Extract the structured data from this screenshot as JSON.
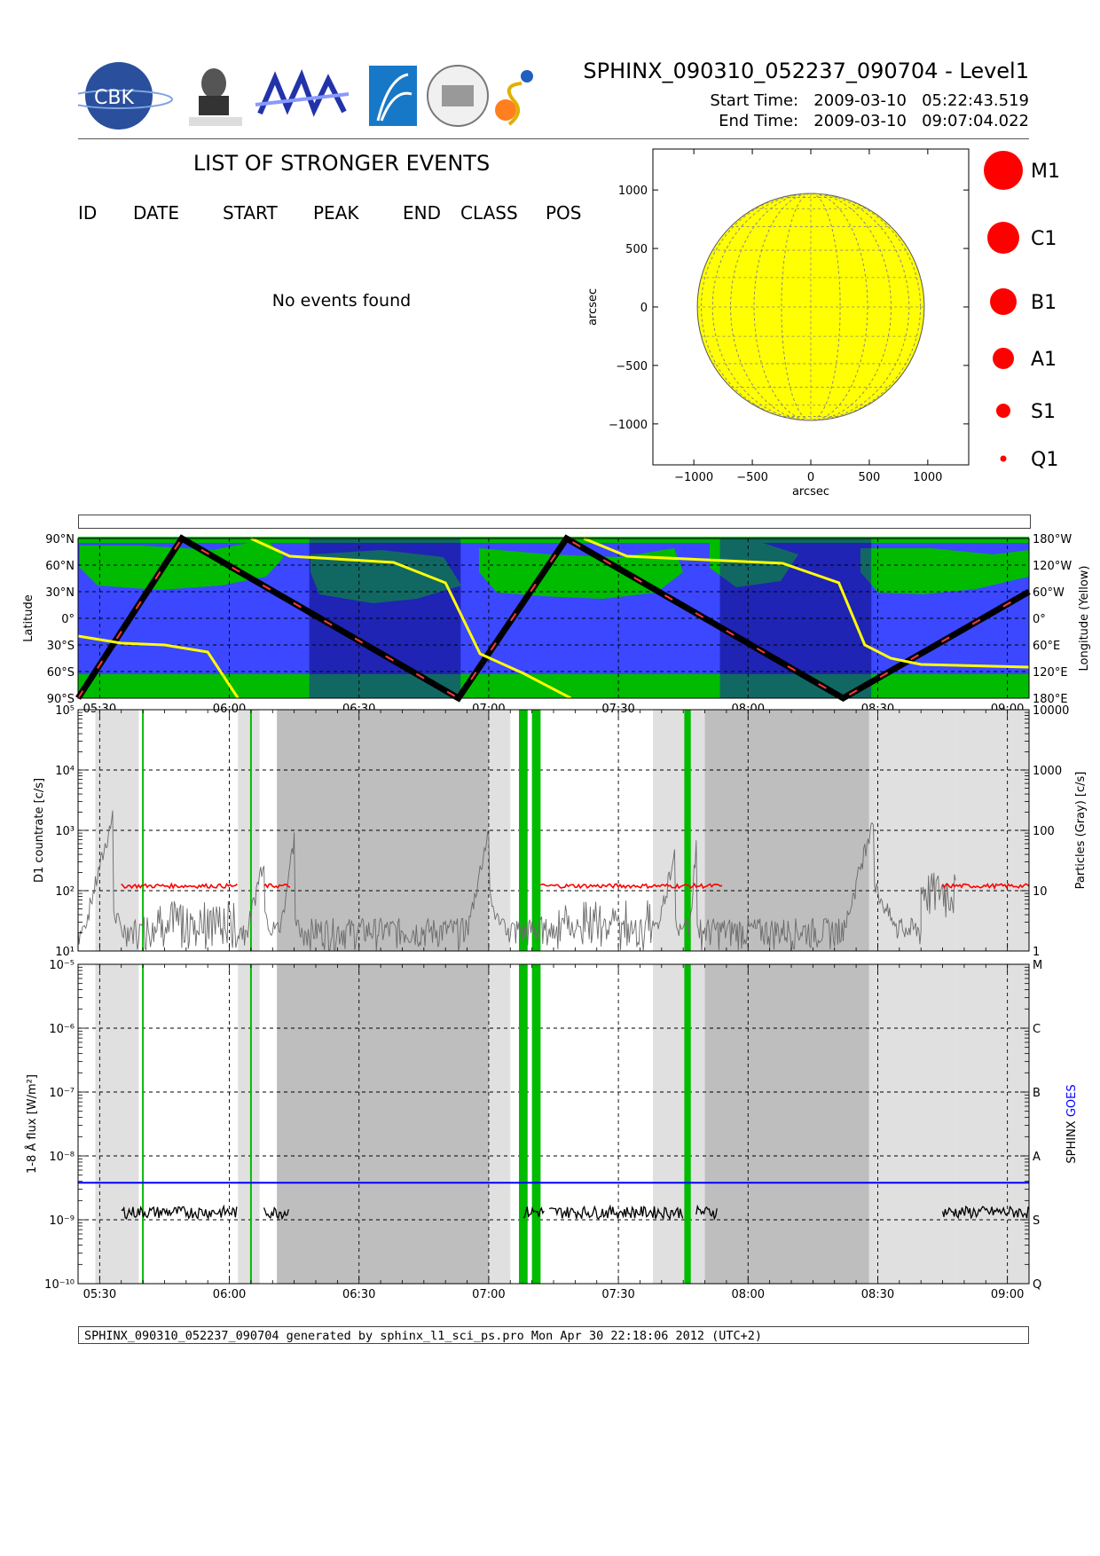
{
  "header": {
    "title": "SPHINX_090310_052237_090704 - Level1",
    "start_label": "Start Time:",
    "start_date": "2009-03-10",
    "start_time": "05:22:43.519",
    "end_label": "End Time:",
    "end_date": "2009-03-10",
    "end_time": "09:07:04.022",
    "logos": [
      "cbk-pan-logo",
      "lebedev-institute-logo",
      "mpan-logo",
      "space-logo",
      "observatory-seal-logo",
      "sphinx-logo"
    ],
    "logo_text": "CBK"
  },
  "events": {
    "title": "LIST OF STRONGER EVENTS",
    "columns": [
      "ID",
      "DATE",
      "START",
      "PEAK",
      "END",
      "CLASS",
      "POS"
    ],
    "empty_message": "No events found"
  },
  "footer": {
    "text": "SPHINX_090310_052237_090704 generated by sphinx_l1_sci_ps.pro Mon Apr 30 22:18:06 2012 (UTC+2)"
  },
  "colors": {
    "sun": "#ffff00",
    "marker": "#ff0000",
    "orbit_blue": "#3b48ff",
    "orbit_dark": "#1f24b4",
    "green": "#00bb00",
    "shade_light": "#e0e0e0",
    "shade_dark": "#bebebe",
    "goes": "#0000ff"
  },
  "chart_data": [
    {
      "type": "scatter",
      "name": "solar-disk-map",
      "xlabel": "arcsec",
      "ylabel": "arcsec",
      "xlim": [
        -1350,
        1350
      ],
      "ylim": [
        -1350,
        1350
      ],
      "xticks": [
        -1000,
        -500,
        0,
        500,
        1000
      ],
      "yticks": [
        -1000,
        -500,
        0,
        500,
        1000
      ],
      "xtick_labels": [
        "−1000",
        "−500",
        "0",
        "500",
        "1000"
      ],
      "ytick_labels": [
        "−1000",
        "−500",
        "0",
        "500",
        "1000"
      ],
      "sun_radius": 970,
      "events": [],
      "legend": [
        {
          "label": "M1",
          "size": 22
        },
        {
          "label": "C1",
          "size": 18
        },
        {
          "label": "B1",
          "size": 15
        },
        {
          "label": "A1",
          "size": 12
        },
        {
          "label": "S1",
          "size": 8
        },
        {
          "label": "Q1",
          "size": 3.5
        }
      ]
    },
    {
      "type": "line",
      "name": "orbit-panel",
      "ylabel": "Latitude",
      "y2label": "Longitude (Yellow)",
      "xlim_min": [
        325,
        545
      ],
      "ylim": [
        -90,
        90
      ],
      "yticks": [
        90,
        60,
        30,
        0,
        -30,
        -60,
        -90
      ],
      "ytick_labels": [
        "90°N",
        "60°N",
        "30°N",
        "0°",
        "30°S",
        "60°S",
        "90°S"
      ],
      "y2tick_labels": [
        "180°W",
        "120°W",
        "60°W",
        "0°",
        "60°E",
        "120°E",
        "180°E"
      ],
      "xticks_min": [
        330,
        360,
        390,
        420,
        450,
        480,
        510,
        540
      ],
      "xtick_labels": [
        "05:30",
        "06:00",
        "06:30",
        "07:00",
        "07:30",
        "08:00",
        "08:30",
        "09:00"
      ],
      "eclipse_min": [
        [
          378.5,
          413.5
        ],
        [
          473.5,
          508.5
        ]
      ],
      "latitude_track": [
        [
          325,
          -90
        ],
        [
          349,
          90
        ],
        [
          413,
          -90
        ],
        [
          438,
          90
        ],
        [
          502,
          -90
        ],
        [
          545,
          30
        ]
      ],
      "longitude_track": [
        [
          325,
          -20
        ],
        [
          335,
          -28
        ],
        [
          345,
          -30
        ],
        [
          355,
          -38
        ],
        [
          362,
          -90
        ],
        [
          365,
          90
        ],
        [
          374,
          70
        ],
        [
          398,
          63
        ],
        [
          410,
          40
        ],
        [
          418,
          -40
        ],
        [
          428,
          -62
        ],
        [
          439,
          -90
        ],
        [
          442,
          90
        ],
        [
          452,
          70
        ],
        [
          488,
          62
        ],
        [
          501,
          40
        ],
        [
          507,
          -30
        ],
        [
          513,
          -45
        ],
        [
          520,
          -52
        ],
        [
          545,
          -55
        ]
      ]
    },
    {
      "type": "line",
      "name": "countrate-panel",
      "ylabel": "D1 countrate [c/s]",
      "y2label": "Particles (Gray) [c/s]",
      "yscale": "log",
      "ylim": [
        10,
        100000
      ],
      "yticks": [
        10,
        100,
        1000,
        10000,
        100000
      ],
      "ytick_labels": [
        "10¹",
        "10²",
        "10³",
        "10⁴",
        "10⁵"
      ],
      "y2tick_labels": [
        "1",
        "10",
        "100",
        "1000",
        "10000"
      ],
      "xlim_min": [
        325,
        545
      ],
      "xtick_labels": [
        "05:30",
        "06:00",
        "06:30",
        "07:00",
        "07:30",
        "08:00",
        "08:30",
        "09:00"
      ],
      "red_level": 120,
      "red_segments_min": [
        [
          335,
          362
        ],
        [
          368,
          374
        ],
        [
          432,
          474
        ],
        [
          525,
          545
        ]
      ],
      "green_lines_min": [
        [
          340,
          0.4
        ],
        [
          365,
          0.4
        ],
        [
          428,
          2
        ],
        [
          431,
          2
        ],
        [
          466,
          1.5
        ]
      ],
      "particle_peaks": [
        {
          "start": 325,
          "peak": 333,
          "end": 337,
          "max": 1800
        },
        {
          "start": 363,
          "peak": 368,
          "end": 372,
          "max": 400
        },
        {
          "start": 371,
          "peak": 375,
          "end": 377,
          "max": 800
        },
        {
          "start": 414,
          "peak": 420,
          "end": 425,
          "max": 1100
        },
        {
          "start": 458,
          "peak": 463,
          "end": 466,
          "max": 500
        },
        {
          "start": 466,
          "peak": 468,
          "end": 469,
          "max": 600
        },
        {
          "start": 501,
          "peak": 509,
          "end": 517,
          "max": 1900
        }
      ]
    },
    {
      "type": "line",
      "name": "goes-flux-panel",
      "ylabel": "1-8 Å flux [W/m²]",
      "y2label": "SPHINX GOES",
      "series": [
        {
          "name": "SPHINX"
        },
        {
          "name": "GOES"
        }
      ],
      "yscale": "log",
      "ylim": [
        1e-10,
        1e-05
      ],
      "ytick_labels": [
        "10⁻¹⁰",
        "10⁻⁹",
        "10⁻⁸",
        "10⁻⁷",
        "10⁻⁶",
        "10⁻⁵"
      ],
      "class_labels": [
        "Q",
        "S",
        "A",
        "B",
        "C",
        "M"
      ],
      "xtick_labels": [
        "05:30",
        "06:00",
        "06:30",
        "07:00",
        "07:30",
        "08:00",
        "08:30",
        "09:00"
      ],
      "goes_level": 3.8e-09,
      "sphinx_level": 1.3e-09,
      "sphinx_segments_min": [
        [
          335,
          362
        ],
        [
          368,
          374
        ],
        [
          428,
          433
        ],
        [
          434,
          465
        ],
        [
          468,
          473
        ],
        [
          525,
          545
        ]
      ]
    }
  ]
}
